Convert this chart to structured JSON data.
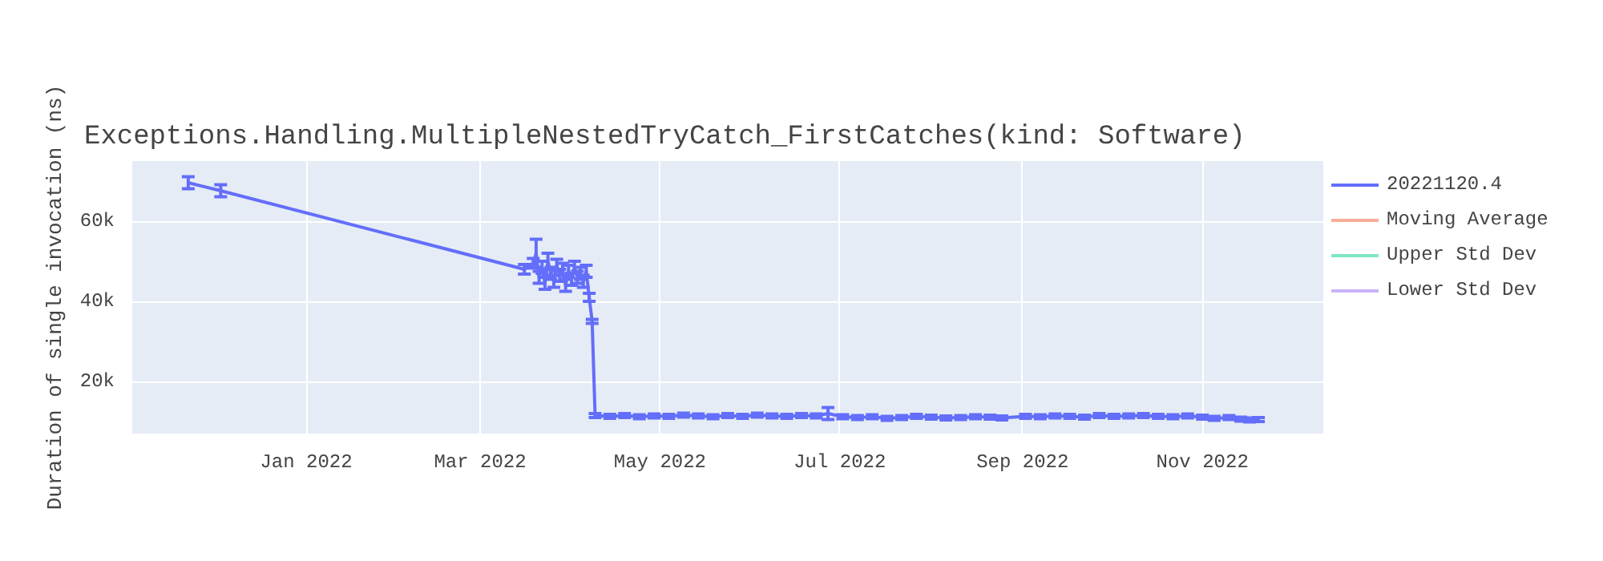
{
  "chart_data": {
    "type": "line",
    "title": "Exceptions.Handling.MultipleNestedTryCatch_FirstCatches(kind: Software)",
    "ylabel": "Duration of single invocation (ns)",
    "xlim": [
      "2021-11-03",
      "2022-12-12"
    ],
    "xticks": [
      {
        "value": "2022-01-01",
        "label": "Jan 2022"
      },
      {
        "value": "2022-03-01",
        "label": "Mar 2022"
      },
      {
        "value": "2022-05-01",
        "label": "May 2022"
      },
      {
        "value": "2022-07-01",
        "label": "Jul 2022"
      },
      {
        "value": "2022-09-01",
        "label": "Sep 2022"
      },
      {
        "value": "2022-11-01",
        "label": "Nov 2022"
      }
    ],
    "ylim": [
      7000,
      75000
    ],
    "yticks": [
      {
        "value": 20000,
        "label": "20k"
      },
      {
        "value": 40000,
        "label": "40k"
      },
      {
        "value": 60000,
        "label": "60k"
      }
    ],
    "grid": true,
    "legend": "right",
    "marker": "none",
    "line_style": "solid",
    "x": [
      "2021-11-22",
      "2021-12-03",
      "2022-03-16",
      "2022-03-19",
      "2022-03-20",
      "2022-03-21",
      "2022-03-22",
      "2022-03-23",
      "2022-03-24",
      "2022-03-25",
      "2022-03-26",
      "2022-03-27",
      "2022-03-28",
      "2022-03-29",
      "2022-03-30",
      "2022-03-31",
      "2022-04-01",
      "2022-04-02",
      "2022-04-03",
      "2022-04-04",
      "2022-04-05",
      "2022-04-06",
      "2022-04-07",
      "2022-04-08",
      "2022-04-09",
      "2022-04-14",
      "2022-04-19",
      "2022-04-24",
      "2022-04-29",
      "2022-05-04",
      "2022-05-09",
      "2022-05-14",
      "2022-05-19",
      "2022-05-24",
      "2022-05-29",
      "2022-06-03",
      "2022-06-08",
      "2022-06-13",
      "2022-06-18",
      "2022-06-23",
      "2022-06-27",
      "2022-07-02",
      "2022-07-07",
      "2022-07-12",
      "2022-07-17",
      "2022-07-22",
      "2022-07-27",
      "2022-08-01",
      "2022-08-06",
      "2022-08-11",
      "2022-08-16",
      "2022-08-21",
      "2022-08-25",
      "2022-09-02",
      "2022-09-07",
      "2022-09-12",
      "2022-09-17",
      "2022-09-22",
      "2022-09-27",
      "2022-10-02",
      "2022-10-07",
      "2022-10-12",
      "2022-10-17",
      "2022-10-22",
      "2022-10-27",
      "2022-11-01",
      "2022-11-05",
      "2022-11-10",
      "2022-11-14",
      "2022-11-17",
      "2022-11-20"
    ],
    "series": [
      {
        "name": "20221120.4",
        "color": "#636efa",
        "values": [
          69600,
          67600,
          48000,
          49500,
          52000,
          46000,
          48500,
          44500,
          50000,
          47000,
          45000,
          49000,
          46500,
          48000,
          44000,
          47500,
          45500,
          48500,
          46000,
          47000,
          45000,
          47500,
          41000,
          35000,
          11500,
          11300,
          11500,
          11200,
          11400,
          11300,
          11600,
          11400,
          11200,
          11500,
          11300,
          11600,
          11400,
          11300,
          11500,
          11400,
          12000,
          11200,
          11000,
          11200,
          10800,
          11000,
          11300,
          11100,
          10900,
          11000,
          11200,
          11100,
          10900,
          11300,
          11200,
          11400,
          11300,
          11100,
          11500,
          11300,
          11400,
          11500,
          11300,
          11200,
          11400,
          11100,
          10800,
          11000,
          10600,
          10400,
          10500
        ],
        "errors": [
          1500,
          1500,
          1200,
          1200,
          3500,
          1500,
          1500,
          1500,
          2000,
          1500,
          1500,
          1500,
          1500,
          1500,
          1500,
          1500,
          1500,
          1500,
          1500,
          1500,
          1500,
          1500,
          1000,
          500,
          500,
          500,
          500,
          500,
          500,
          500,
          500,
          500,
          500,
          500,
          500,
          500,
          500,
          500,
          500,
          500,
          1500,
          500,
          500,
          500,
          500,
          500,
          500,
          500,
          500,
          500,
          500,
          500,
          500,
          500,
          500,
          500,
          500,
          500,
          500,
          500,
          500,
          500,
          500,
          500,
          500,
          500,
          500,
          500,
          500,
          500,
          500
        ]
      },
      {
        "name": "Moving Average",
        "color": "#f9ad96",
        "values": [
          null,
          null,
          null,
          null,
          null,
          null,
          null,
          null,
          null,
          null,
          null,
          null,
          null,
          null,
          null,
          null,
          null,
          null,
          null,
          null,
          null,
          null,
          null,
          null,
          null,
          null,
          null,
          null,
          null,
          null,
          null,
          null,
          null,
          null,
          null,
          null,
          null,
          null,
          null,
          null,
          null,
          null,
          null,
          null,
          null,
          null,
          null,
          null,
          null,
          null,
          null,
          null,
          null,
          null,
          null,
          null,
          null,
          null,
          null,
          null,
          null,
          null,
          null,
          null,
          null,
          null,
          null,
          null,
          null,
          null,
          null
        ]
      },
      {
        "name": "Upper Std Dev",
        "color": "#7de8c2",
        "values": [
          null,
          null,
          null,
          null,
          null,
          null,
          null,
          null,
          null,
          null,
          null,
          null,
          null,
          null,
          null,
          null,
          null,
          null,
          null,
          null,
          null,
          null,
          null,
          null,
          null,
          null,
          null,
          null,
          null,
          null,
          null,
          null,
          null,
          null,
          null,
          null,
          null,
          null,
          null,
          null,
          null,
          null,
          null,
          null,
          null,
          null,
          null,
          null,
          null,
          null,
          null,
          null,
          null,
          null,
          null,
          null,
          null,
          null,
          null,
          null,
          null,
          null,
          null,
          null,
          null,
          null,
          null,
          null,
          null,
          null,
          null
        ]
      },
      {
        "name": "Lower Std Dev",
        "color": "#c9b3f7",
        "values": [
          null,
          null,
          null,
          null,
          null,
          null,
          null,
          null,
          null,
          null,
          null,
          null,
          null,
          null,
          null,
          null,
          null,
          null,
          null,
          null,
          null,
          null,
          null,
          null,
          null,
          null,
          null,
          null,
          null,
          null,
          null,
          null,
          null,
          null,
          null,
          null,
          null,
          null,
          null,
          null,
          null,
          null,
          null,
          null,
          null,
          null,
          null,
          null,
          null,
          null,
          null,
          null,
          null,
          null,
          null,
          null,
          null,
          null,
          null,
          null,
          null,
          null,
          null,
          null,
          null,
          null,
          null,
          null,
          null,
          null,
          null
        ]
      }
    ]
  }
}
